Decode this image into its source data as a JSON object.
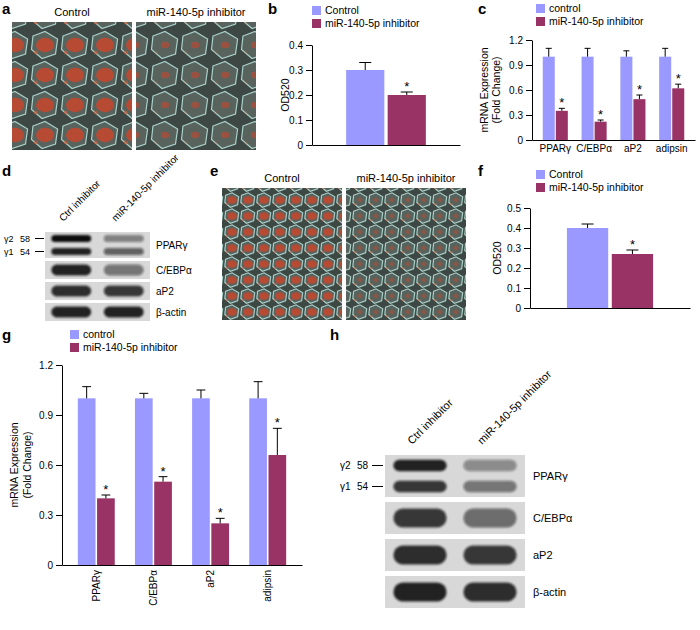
{
  "chart_data": [
    {
      "type": "bar",
      "title": "b",
      "categories": [
        null
      ],
      "y_label": [
        "OD520"
      ],
      "ylim": [
        0,
        0.4
      ],
      "yticks": [
        0,
        0.1,
        0.2,
        0.3,
        0.4
      ],
      "legend": "top-left",
      "series": [
        {
          "name": "Control",
          "color": "#9999ff",
          "values": [
            0.3
          ],
          "errors": [
            0.03
          ]
        },
        {
          "name": "miR-140-5p inhibitor",
          "color": "#993366",
          "values": [
            0.2
          ],
          "errors": [
            0.012
          ],
          "significance": [
            "*"
          ]
        }
      ]
    },
    {
      "type": "bar",
      "title": "c",
      "categories": [
        "PPARγ",
        "C/EBPα",
        "aP2",
        "adipsin"
      ],
      "y_label": [
        "mRNA Expression",
        "(Fold Change)"
      ],
      "ylim": [
        0,
        1.2
      ],
      "yticks": [
        0,
        0.3,
        0.6,
        0.9,
        1.2
      ],
      "legend": "top-left",
      "series": [
        {
          "name": "control",
          "color": "#9999ff",
          "values": [
            1.0,
            1.0,
            1.0,
            1.0
          ],
          "errors": [
            0.1,
            0.1,
            0.07,
            0.1
          ]
        },
        {
          "name": "miR-140-5p inhibitor",
          "color": "#993366",
          "values": [
            0.35,
            0.22,
            0.49,
            0.62
          ],
          "errors": [
            0.03,
            0.02,
            0.05,
            0.05
          ],
          "significance": [
            "*",
            "*",
            "*",
            "*"
          ]
        }
      ]
    },
    {
      "type": "bar",
      "title": "f",
      "categories": [
        null
      ],
      "y_label": [
        "OD520"
      ],
      "ylim": [
        0,
        0.5
      ],
      "yticks": [
        0,
        0.1,
        0.2,
        0.3,
        0.4,
        0.5
      ],
      "legend": "top-left",
      "series": [
        {
          "name": "Control",
          "color": "#9999ff",
          "values": [
            0.4
          ],
          "errors": [
            0.02
          ]
        },
        {
          "name": "miR-140-5p inhibitor",
          "color": "#993366",
          "values": [
            0.27
          ],
          "errors": [
            0.02
          ],
          "significance": [
            "*"
          ]
        }
      ]
    },
    {
      "type": "bar",
      "title": "g",
      "categories": [
        "PPARγ",
        "C/EBPα",
        "aP2",
        "adipsin"
      ],
      "y_label": [
        "mRNA Expression",
        "(Fold Change)"
      ],
      "ylim": [
        0,
        1.2
      ],
      "yticks": [
        0,
        0.3,
        0.6,
        0.9,
        1.2
      ],
      "legend": "top-left",
      "series": [
        {
          "name": "control",
          "color": "#9999ff",
          "values": [
            1.0,
            1.0,
            1.0,
            1.0
          ],
          "errors": [
            0.07,
            0.03,
            0.05,
            0.1
          ]
        },
        {
          "name": "miR-140-5p inhibitor",
          "color": "#993366",
          "values": [
            0.4,
            0.5,
            0.25,
            0.66
          ],
          "errors": [
            0.02,
            0.03,
            0.03,
            0.16
          ],
          "significance": [
            "*",
            "*",
            "*",
            "*"
          ]
        }
      ]
    }
  ],
  "micrographs": [
    {
      "panel": "a",
      "images": [
        "Control",
        "miR-140-5p inhibitor"
      ]
    },
    {
      "panel": "e",
      "images": [
        "Control",
        "miR-140-5p inhibitor"
      ]
    }
  ],
  "blots": [
    {
      "panel": "d",
      "lanes": [
        "Ctrl inhibitor",
        "miR-140-5p inhibitor"
      ],
      "markers": [
        {
          "isoform": "γ2",
          "kda": 58
        },
        {
          "isoform": "γ1",
          "kda": 54
        }
      ],
      "rows": [
        {
          "label": "PPARγ",
          "intensity": [
            [
              1.0,
              0.9
            ],
            [
              0.45,
              0.6
            ]
          ]
        },
        {
          "label": "C/EBPα",
          "intensity": [
            [
              0.9
            ],
            [
              0.5
            ]
          ]
        },
        {
          "label": "aP2",
          "intensity": [
            [
              0.85
            ],
            [
              0.8
            ]
          ]
        },
        {
          "label": "β-actin",
          "intensity": [
            [
              0.9
            ],
            [
              0.9
            ]
          ]
        }
      ]
    },
    {
      "panel": "h",
      "lanes": [
        "Ctrl inhibitor",
        "miR-140-5p inhibitor"
      ],
      "markers": [
        {
          "isoform": "γ2",
          "kda": 58
        },
        {
          "isoform": "γ1",
          "kda": 54
        }
      ],
      "rows": [
        {
          "label": "PPARγ",
          "intensity": [
            [
              0.9,
              0.8
            ],
            [
              0.4,
              0.5
            ]
          ]
        },
        {
          "label": "C/EBPα",
          "intensity": [
            [
              0.8
            ],
            [
              0.55
            ]
          ]
        },
        {
          "label": "aP2",
          "intensity": [
            [
              0.85
            ],
            [
              0.8
            ]
          ]
        },
        {
          "label": "β-actin",
          "intensity": [
            [
              0.9
            ],
            [
              0.85
            ]
          ]
        }
      ]
    }
  ]
}
